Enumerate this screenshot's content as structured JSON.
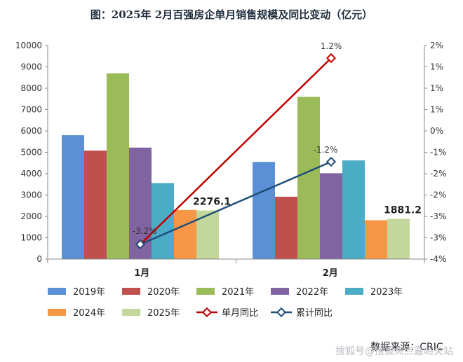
{
  "chart_data": {
    "type": "bar",
    "title": "图：2025年 2月百强房企单月销售规模及同比变动（亿元）",
    "categories": [
      "1月",
      "2月"
    ],
    "series": [
      {
        "name": "2019年",
        "values": [
          5800,
          4550
        ],
        "color": "#5b8fd6"
      },
      {
        "name": "2020年",
        "values": [
          5080,
          2920
        ],
        "color": "#c0504d"
      },
      {
        "name": "2021年",
        "values": [
          8700,
          7600
        ],
        "color": "#9bbb59"
      },
      {
        "name": "2022年",
        "values": [
          5220,
          4020
        ],
        "color": "#8064a2"
      },
      {
        "name": "2023年",
        "values": [
          3560,
          4620
        ],
        "color": "#4bacc6"
      },
      {
        "name": "2024年",
        "values": [
          2300,
          1820
        ],
        "color": "#f79646"
      },
      {
        "name": "2025年",
        "values": [
          2276.1,
          1881.2
        ],
        "color": "#c3d69b"
      }
    ],
    "data_labels": [
      "2276.1",
      "1881.2"
    ],
    "lines": [
      {
        "name": "单月同比",
        "label_values": [
          "",
          "1.2%"
        ],
        "color": "#c00000"
      },
      {
        "name": "累计同比",
        "label_values": [
          "-3.2%",
          "-1.2%"
        ],
        "color": "#1f4e79"
      }
    ],
    "y_left": {
      "min": 0,
      "max": 10000,
      "step": 1000,
      "ticks": [
        "0",
        "1000",
        "2000",
        "3000",
        "4000",
        "5000",
        "6000",
        "7000",
        "8000",
        "9000",
        "10000"
      ]
    },
    "y_right": {
      "ticks": [
        "-4%",
        "-3%",
        "-3%",
        "-2%",
        "-2%",
        "-1%",
        "0%",
        "1%",
        "1%",
        "1%",
        "2%"
      ]
    },
    "line_tick_positions": {
      "单月同比": [
        9.5,
        0.7
      ],
      "累计同比": [
        0.7,
        0.0
      ]
    },
    "legend_position": "bottom",
    "source_text": "数据来源：CRIC",
    "watermark": "搜狐号@搜狐焦点嘉峪关站"
  }
}
